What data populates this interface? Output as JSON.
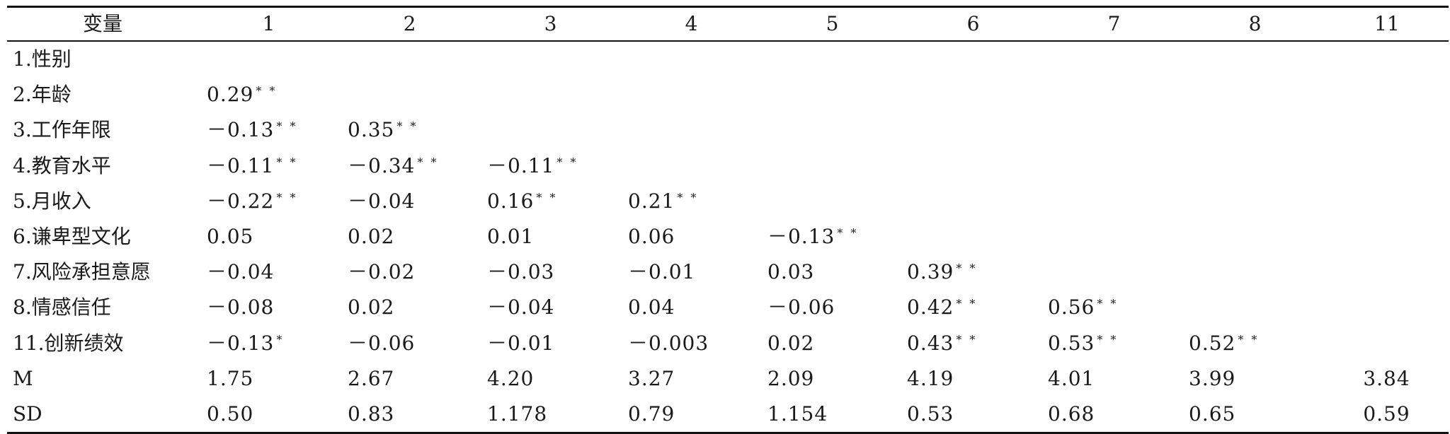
{
  "table": {
    "headers": [
      "变量",
      "1",
      "2",
      "3",
      "4",
      "5",
      "6",
      "7",
      "8",
      "11"
    ],
    "rows": [
      {
        "label": "1.性别",
        "cells": [
          [
            "",
            ""
          ],
          [
            "",
            ""
          ],
          [
            "",
            ""
          ],
          [
            "",
            ""
          ],
          [
            "",
            ""
          ],
          [
            "",
            ""
          ],
          [
            "",
            ""
          ],
          [
            "",
            ""
          ],
          [
            "",
            ""
          ]
        ]
      },
      {
        "label": "2.年龄",
        "cells": [
          [
            "0.29",
            "* *"
          ],
          [
            "",
            ""
          ],
          [
            "",
            ""
          ],
          [
            "",
            ""
          ],
          [
            "",
            ""
          ],
          [
            "",
            ""
          ],
          [
            "",
            ""
          ],
          [
            "",
            ""
          ],
          [
            "",
            ""
          ]
        ]
      },
      {
        "label": "3.工作年限",
        "cells": [
          [
            "－0.13",
            "* *"
          ],
          [
            "0.35",
            "* *"
          ],
          [
            "",
            ""
          ],
          [
            "",
            ""
          ],
          [
            "",
            ""
          ],
          [
            "",
            ""
          ],
          [
            "",
            ""
          ],
          [
            "",
            ""
          ],
          [
            "",
            ""
          ]
        ]
      },
      {
        "label": "4.教育水平",
        "cells": [
          [
            "－0.11",
            "* *"
          ],
          [
            "－0.34",
            "* *"
          ],
          [
            "－0.11",
            "* *"
          ],
          [
            "",
            ""
          ],
          [
            "",
            ""
          ],
          [
            "",
            ""
          ],
          [
            "",
            ""
          ],
          [
            "",
            ""
          ],
          [
            "",
            ""
          ]
        ]
      },
      {
        "label": "5.月收入",
        "cells": [
          [
            "－0.22",
            "* *"
          ],
          [
            "－0.04",
            ""
          ],
          [
            "0.16",
            "* *"
          ],
          [
            "0.21",
            "* *"
          ],
          [
            "",
            ""
          ],
          [
            "",
            ""
          ],
          [
            "",
            ""
          ],
          [
            "",
            ""
          ],
          [
            "",
            ""
          ]
        ]
      },
      {
        "label": "6.谦卑型文化",
        "cells": [
          [
            "0.05",
            ""
          ],
          [
            "0.02",
            ""
          ],
          [
            "0.01",
            ""
          ],
          [
            "0.06",
            ""
          ],
          [
            "－0.13",
            "* *"
          ],
          [
            "",
            ""
          ],
          [
            "",
            ""
          ],
          [
            "",
            ""
          ],
          [
            "",
            ""
          ]
        ]
      },
      {
        "label": "7.风险承担意愿",
        "cells": [
          [
            "－0.04",
            ""
          ],
          [
            "－0.02",
            ""
          ],
          [
            "－0.03",
            ""
          ],
          [
            "－0.01",
            ""
          ],
          [
            "0.03",
            ""
          ],
          [
            "0.39",
            "* *"
          ],
          [
            "",
            ""
          ],
          [
            "",
            ""
          ],
          [
            "",
            ""
          ]
        ]
      },
      {
        "label": "8.情感信任",
        "cells": [
          [
            "－0.08",
            ""
          ],
          [
            "0.02",
            ""
          ],
          [
            "－0.04",
            ""
          ],
          [
            "0.04",
            ""
          ],
          [
            "－0.06",
            ""
          ],
          [
            "0.42",
            "* *"
          ],
          [
            "0.56",
            "* *"
          ],
          [
            "",
            ""
          ],
          [
            "",
            ""
          ]
        ]
      },
      {
        "label": "11.创新绩效",
        "cells": [
          [
            "－0.13",
            "*"
          ],
          [
            "－0.06",
            ""
          ],
          [
            "－0.01",
            ""
          ],
          [
            "－0.003",
            ""
          ],
          [
            "0.02",
            ""
          ],
          [
            "0.43",
            "* *"
          ],
          [
            "0.53",
            "* *"
          ],
          [
            "0.52",
            "* *"
          ],
          [
            "",
            ""
          ]
        ]
      },
      {
        "label": "M",
        "cells": [
          [
            "1.75",
            ""
          ],
          [
            "2.67",
            ""
          ],
          [
            "4.20",
            ""
          ],
          [
            "3.27",
            ""
          ],
          [
            "2.09",
            ""
          ],
          [
            "4.19",
            ""
          ],
          [
            "4.01",
            ""
          ],
          [
            "3.99",
            ""
          ],
          [
            "3.84",
            ""
          ]
        ]
      },
      {
        "label": "SD",
        "cells": [
          [
            "0.50",
            ""
          ],
          [
            "0.83",
            ""
          ],
          [
            "1.178",
            ""
          ],
          [
            "0.79",
            ""
          ],
          [
            "1.154",
            ""
          ],
          [
            "0.53",
            ""
          ],
          [
            "0.68",
            ""
          ],
          [
            "0.65",
            ""
          ],
          [
            "0.59",
            ""
          ]
        ]
      }
    ]
  }
}
